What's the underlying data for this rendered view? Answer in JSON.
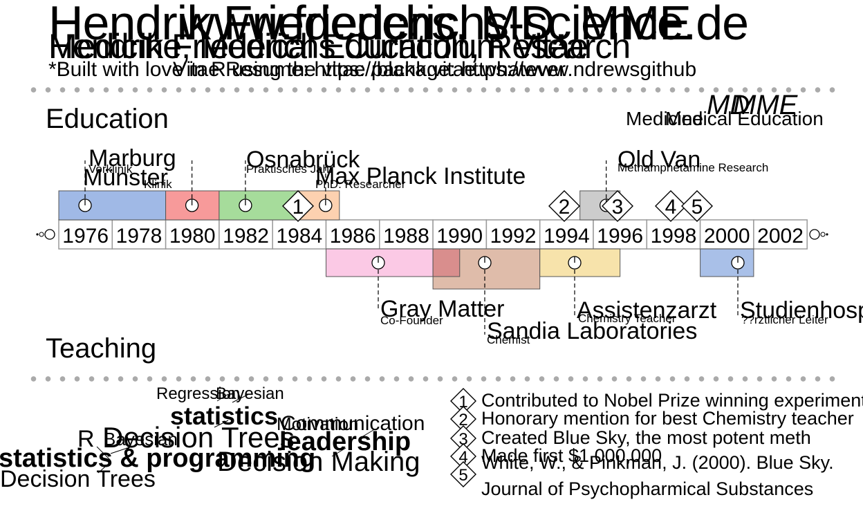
{
  "header": {
    "name": "Hendrik Friederichs, MD, MME",
    "overlap_title": "www.friederichs-science.de",
    "subtitle_a": "Medicine, Medical Education, Research",
    "subtitle_b": "Hendrik Friederichs Curriculum Vitae",
    "credit": "*Built with love in R using the vitae package: https://www.ndrewsgithub",
    "credit_b": "Vitae Resume: https://blank.vitae.whatever"
  },
  "degrees": {
    "items": [
      {
        "label": "MD",
        "sub": "Medicine"
      },
      {
        "label": "MME",
        "sub": "Medical Education"
      }
    ]
  },
  "sections": {
    "education": "Education",
    "teaching": "Teaching"
  },
  "timeline": {
    "years": [
      "1976",
      "1978",
      "1980",
      "1982",
      "1984",
      "1986",
      "1988",
      "1990",
      "1992",
      "1994",
      "1996",
      "1998",
      "2000",
      "2002"
    ],
    "education_items": [
      {
        "title": "Marburg",
        "role": "Vorklinik",
        "start": 1976,
        "end": 1980,
        "color": "#a0b9e6"
      },
      {
        "title": "Münster",
        "role": "Klinik",
        "start": 1980,
        "end": 1982,
        "color": "#f79a9a"
      },
      {
        "title": "Osnabrück",
        "role": "Praktisches Jahr",
        "start": 1982,
        "end": 1985,
        "color": "#a6dc9b"
      },
      {
        "title": "Max Planck Institute",
        "role": "PhD. Researcher",
        "start": 1985,
        "end": 1986.5,
        "color": "#fdd1b0"
      },
      {
        "title": "Old Van",
        "role": "Methamphetamine Research",
        "start": 1995.5,
        "end": 1997,
        "color": "#cccccc"
      }
    ],
    "work_items": [
      {
        "title": "Gray Matter",
        "role": "Co-Founder",
        "start": 1986,
        "end": 1991,
        "color": "#fbc3e2"
      },
      {
        "title": "Sandia Laboratories",
        "role": "Chemist",
        "start": 1990,
        "end": 1994,
        "color": "#dcb5a1"
      },
      {
        "title": "Assistenzarzt",
        "role": "Chemistry Teacher",
        "start": 1994,
        "end": 1997,
        "color": "#f6e0a2"
      },
      {
        "title": "Studienhospital",
        "role": "??rztlicher Leiter",
        "start": 2000,
        "end": 2002,
        "color": "#a0b9e6"
      }
    ],
    "milestones": [
      {
        "label": "1",
        "year": 1984
      },
      {
        "label": "2",
        "year": 1994
      },
      {
        "label": "3",
        "year": 1996
      },
      {
        "label": "4",
        "year": 1998
      },
      {
        "label": "5",
        "year": 1999
      }
    ]
  },
  "skills": {
    "words": [
      {
        "text": "Regression",
        "size": 24,
        "bold": false
      },
      {
        "text": "Bayesian",
        "size": 24,
        "bold": false
      },
      {
        "text": "statistics",
        "size": 36,
        "bold": true
      },
      {
        "text": "R",
        "size": 34,
        "bold": false
      },
      {
        "text": "Bayesian",
        "size": 26,
        "bold": false
      },
      {
        "text": "Decision Trees",
        "size": 42,
        "bold": false
      },
      {
        "text": "Motivation",
        "size": 26,
        "bold": false
      },
      {
        "text": "Communication",
        "size": 30,
        "bold": false
      },
      {
        "text": "leadership",
        "size": 38,
        "bold": true
      },
      {
        "text": "statistics & programming",
        "size": 38,
        "bold": true
      },
      {
        "text": "Decision Making",
        "size": 40,
        "bold": false
      },
      {
        "text": "Decision Trees",
        "size": 34,
        "bold": false
      }
    ]
  },
  "achievements": [
    {
      "num": "1",
      "text": "Contributed to Nobel Prize winning experiment"
    },
    {
      "num": "2",
      "text": "Honorary mention for best Chemistry teacher"
    },
    {
      "num": "3",
      "text": "Created Blue Sky, the most potent meth"
    },
    {
      "num": "4",
      "text": "Made first $1,000,000"
    },
    {
      "num": "5",
      "text": "White, W., & Pinkman, J. (2000). Blue Sky."
    },
    {
      "num": "",
      "text": "Journal of Psychopharmical Substances"
    }
  ]
}
